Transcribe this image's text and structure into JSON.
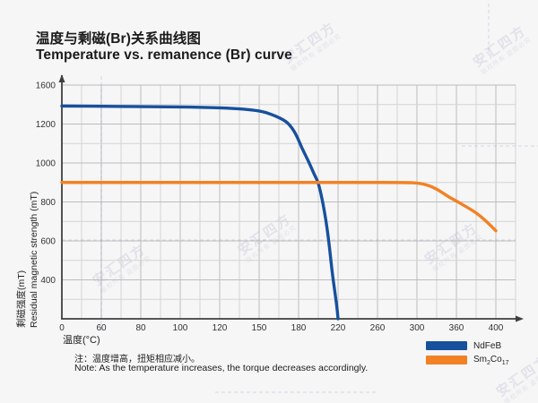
{
  "header": {
    "title_zh": "温度与剩磁(Br)关系曲线图",
    "title_en": "Temperature vs. remanence (Br) curve"
  },
  "watermark": {
    "brand": "安汇四方",
    "notice": "版权所有 盗图必究"
  },
  "note": {
    "zh": "注：温度增高，扭矩相应减小。",
    "en": "Note: As the temperature increases, the torque decreases accordingly."
  },
  "legend": {
    "items": [
      {
        "name": "NdFeB",
        "color": "#17509d",
        "parts": [
          {
            "t": "NdFeB",
            "sub": false
          }
        ]
      },
      {
        "name": "Sm2Co17",
        "color": "#f28124",
        "parts": [
          {
            "t": "Sm",
            "sub": false
          },
          {
            "t": "2",
            "sub": true
          },
          {
            "t": "Co",
            "sub": false
          },
          {
            "t": "17",
            "sub": true
          }
        ]
      }
    ]
  },
  "chart_data": {
    "type": "line",
    "title": "Temperature vs. remanence (Br) curve",
    "xlabel": "温度(°C)",
    "ylabel_zh": "剩磁强度(mT)",
    "ylabel_en": "Residual magnetic strength (mT)",
    "xlim": [
      0,
      400
    ],
    "ylim": [
      0,
      1600
    ],
    "x_ticks": [
      0,
      60,
      80,
      100,
      120,
      150,
      180,
      220,
      260,
      300,
      360,
      400
    ],
    "y_ticks": [
      0,
      400,
      600,
      800,
      1000,
      1200,
      1600
    ],
    "grid": true,
    "legend_position": "bottom-right",
    "scale_note": "ticks are evenly spaced on screen; value scale is piecewise-linear between tick values",
    "series": [
      {
        "name": "NdFeB",
        "color": "#17509d",
        "points": [
          [
            0,
            1385
          ],
          [
            30,
            1384
          ],
          [
            60,
            1382
          ],
          [
            90,
            1378
          ],
          [
            110,
            1373
          ],
          [
            130,
            1362
          ],
          [
            145,
            1345
          ],
          [
            155,
            1322
          ],
          [
            165,
            1268
          ],
          [
            172,
            1215
          ],
          [
            178,
            1150
          ],
          [
            183,
            1080
          ],
          [
            190,
            1010
          ],
          [
            196,
            940
          ],
          [
            200,
            900
          ],
          [
            205,
            790
          ],
          [
            210,
            630
          ],
          [
            214,
            440
          ],
          [
            217,
            260
          ],
          [
            219,
            110
          ],
          [
            220,
            0
          ]
        ]
      },
      {
        "name": "Sm2Co17",
        "color": "#f28124",
        "points": [
          [
            0,
            900
          ],
          [
            60,
            900
          ],
          [
            120,
            900
          ],
          [
            180,
            900
          ],
          [
            240,
            900
          ],
          [
            290,
            900
          ],
          [
            300,
            897
          ],
          [
            310,
            892
          ],
          [
            320,
            882
          ],
          [
            330,
            866
          ],
          [
            340,
            845
          ],
          [
            350,
            822
          ],
          [
            360,
            805
          ],
          [
            370,
            775
          ],
          [
            380,
            745
          ],
          [
            390,
            703
          ],
          [
            400,
            652
          ]
        ]
      }
    ]
  }
}
